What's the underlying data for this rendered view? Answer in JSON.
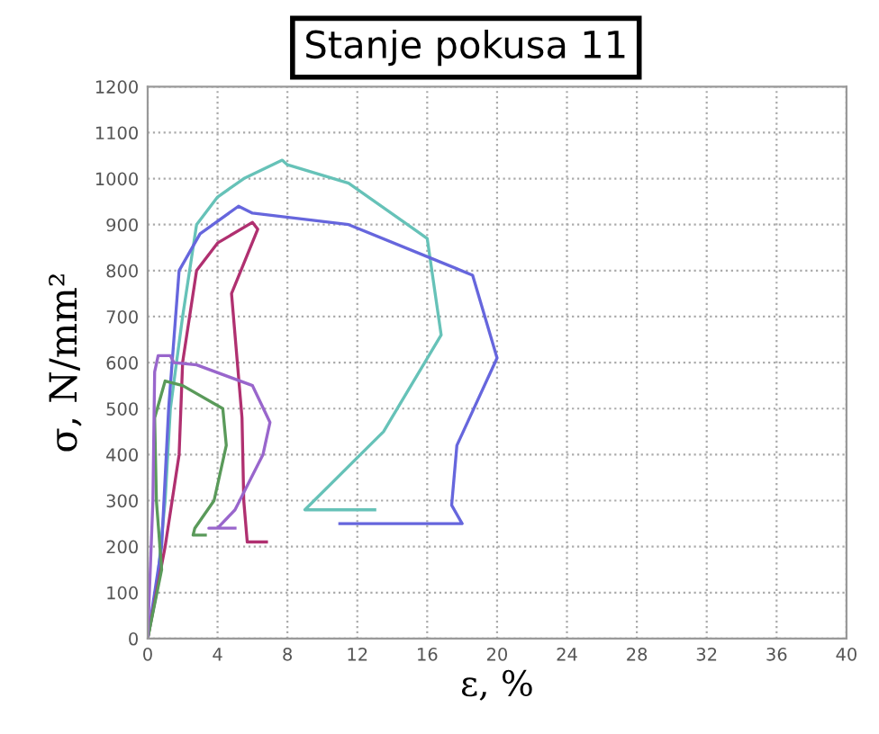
{
  "chart_data": {
    "type": "line",
    "title": "Stanje pokusa 11",
    "xlabel": "ε, %",
    "ylabel": "σ, N/mm²",
    "xlim": [
      0,
      40
    ],
    "ylim": [
      0,
      1200
    ],
    "xticks": [
      0,
      4,
      8,
      12,
      16,
      20,
      24,
      28,
      32,
      36,
      40
    ],
    "yticks": [
      0,
      100,
      200,
      300,
      400,
      500,
      600,
      700,
      800,
      900,
      1000,
      1100,
      1200
    ],
    "grid": true,
    "marker": "none",
    "line_style": "solid",
    "series": [
      {
        "color": "#66c2b8",
        "x": [
          0,
          0.5,
          1,
          1.3,
          2,
          2.8,
          4,
          5.5,
          7.7,
          8,
          11.5,
          16,
          16.8,
          13.5,
          9,
          13
        ],
        "values": [
          0,
          100,
          300,
          500,
          700,
          900,
          960,
          1000,
          1040,
          1030,
          990,
          870,
          660,
          450,
          280,
          280
        ]
      },
      {
        "color": "#6666dd",
        "x": [
          0,
          0.8,
          1.2,
          1.8,
          3,
          5.2,
          6,
          11.5,
          18.6,
          20,
          17.7,
          17.4,
          18,
          11
        ],
        "values": [
          0,
          200,
          500,
          800,
          880,
          940,
          925,
          900,
          790,
          610,
          420,
          290,
          250,
          250
        ]
      },
      {
        "color": "#b03070",
        "x": [
          0,
          1,
          1.8,
          2,
          2.8,
          4,
          6,
          6.3,
          4.8,
          5.4,
          5.5,
          5.7,
          6.8
        ],
        "values": [
          0,
          200,
          400,
          600,
          800,
          860,
          905,
          890,
          750,
          480,
          300,
          210,
          210
        ]
      },
      {
        "color": "#5a9a5a",
        "x": [
          0,
          0.8,
          0.5,
          0.4,
          1,
          2,
          4.3,
          4.5,
          3.8,
          2.7,
          2.6,
          3.3
        ],
        "values": [
          0,
          150,
          300,
          480,
          560,
          550,
          500,
          420,
          300,
          240,
          225,
          225
        ]
      },
      {
        "color": "#9966cc",
        "x": [
          0,
          0.3,
          0.4,
          0.6,
          1.3,
          1.5,
          2.8,
          6,
          7,
          6.6,
          5,
          4,
          3.5,
          5
        ],
        "values": [
          0,
          300,
          580,
          615,
          615,
          600,
          595,
          550,
          470,
          400,
          280,
          240,
          240,
          240
        ]
      }
    ]
  }
}
